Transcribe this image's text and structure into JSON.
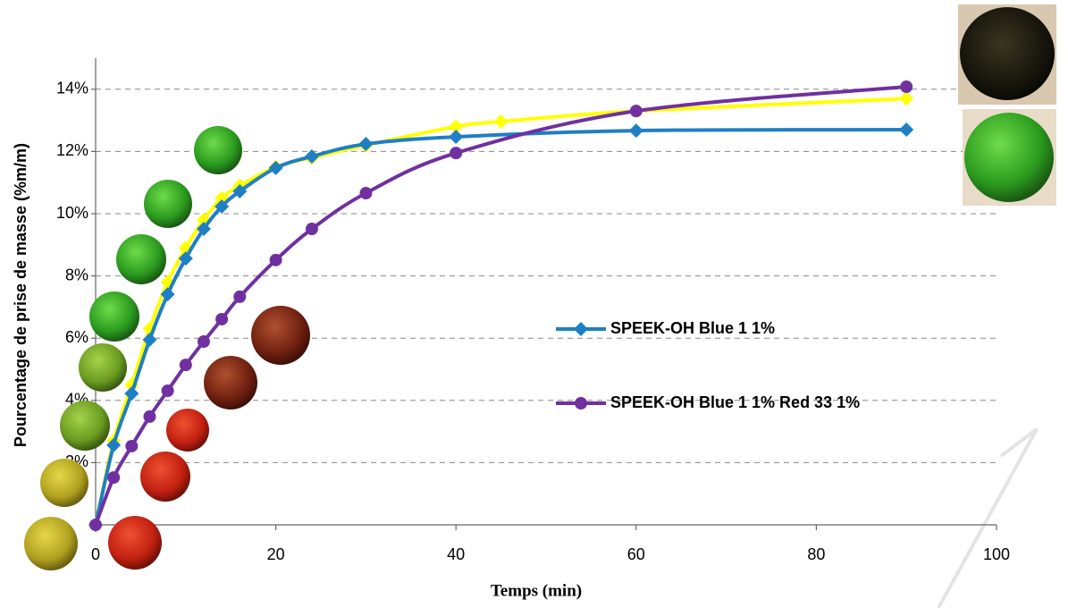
{
  "chart_data": {
    "type": "line",
    "x_label": "Temps (min)",
    "y_label": "Pourcentage de prise de masse (%m/m)",
    "xlim": [
      0,
      100
    ],
    "xticks": [
      0,
      20,
      40,
      60,
      80,
      100
    ],
    "ylim": [
      0,
      15
    ],
    "yticks": [
      {
        "value": 2,
        "label": "2%"
      },
      {
        "value": 4,
        "label": "4%"
      },
      {
        "value": 6,
        "label": "6%"
      },
      {
        "value": 8,
        "label": "8%"
      },
      {
        "value": 10,
        "label": "10%"
      },
      {
        "value": 12,
        "label": "12%"
      },
      {
        "value": 14,
        "label": "14%"
      }
    ],
    "grid": true,
    "legend": "center-right",
    "series": [
      {
        "color": "#ffff00",
        "marker": "diamond",
        "x": [
          0,
          2,
          4,
          6,
          8,
          10,
          12,
          14,
          16,
          20,
          24,
          30,
          40,
          45,
          60,
          90
        ],
        "values": [
          0,
          2.7,
          4.5,
          6.3,
          7.8,
          8.9,
          9.8,
          10.5,
          10.9,
          11.5,
          11.8,
          12.2,
          12.8,
          12.96,
          13.3,
          13.7
        ]
      },
      {
        "name": "SPEEK-OH Blue 1 1%",
        "color": "#1f7fc4",
        "marker": "diamond",
        "x": [
          0,
          2,
          4,
          6,
          8,
          10,
          12,
          14,
          16,
          20,
          24,
          30,
          40,
          60,
          90
        ],
        "values": [
          0,
          2.56,
          4.22,
          5.95,
          7.41,
          8.56,
          9.51,
          10.23,
          10.72,
          11.47,
          11.84,
          12.24,
          12.47,
          12.67,
          12.7
        ]
      },
      {
        "name": "SPEEK-OH Blue 1 1% Red 33 1%",
        "color": "#7030a0",
        "marker": "circle",
        "x": [
          0,
          2,
          4,
          6,
          8,
          10,
          12,
          14,
          16,
          20,
          24,
          30,
          40,
          60,
          90
        ],
        "values": [
          0,
          1.52,
          2.53,
          3.48,
          4.31,
          5.14,
          5.89,
          6.61,
          7.33,
          8.51,
          9.51,
          10.66,
          11.95,
          13.3,
          14.08
        ]
      }
    ]
  }
}
